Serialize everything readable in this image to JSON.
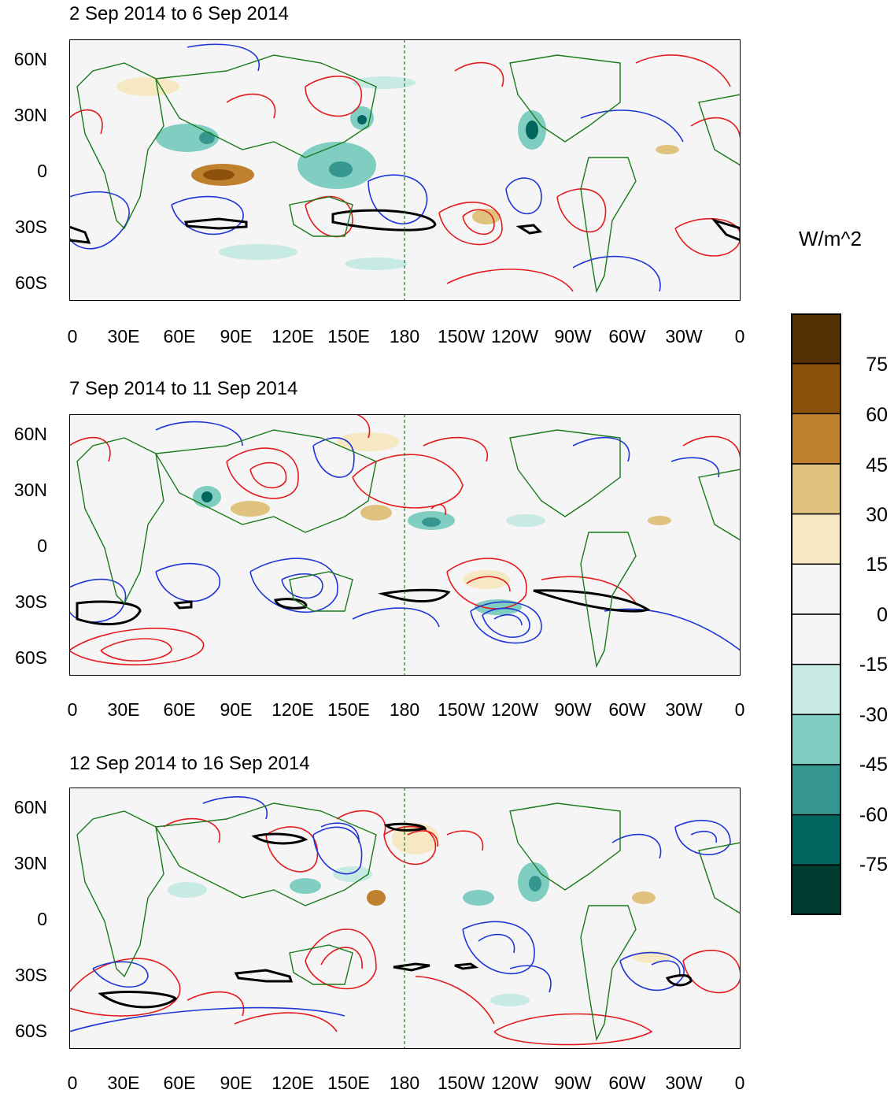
{
  "figure": {
    "units": "W/m^2",
    "lat_labels": [
      "60N",
      "30N",
      "0",
      "30S",
      "60S"
    ],
    "lon_labels": [
      "0",
      "30E",
      "60E",
      "90E",
      "120E",
      "150E",
      "180",
      "150W",
      "120W",
      "90W",
      "60W",
      "30W",
      "0"
    ],
    "panels": [
      {
        "title": "2 Sep 2014 to 6 Sep 2014"
      },
      {
        "title": "7 Sep 2014 to 11 Sep 2014"
      },
      {
        "title": "12 Sep 2014 to 16 Sep 2014"
      }
    ]
  },
  "colorbar": {
    "labels": [
      "75",
      "60",
      "45",
      "30",
      "15",
      "0",
      "-15",
      "-30",
      "-45",
      "-60",
      "-75"
    ],
    "colors": [
      "#543005",
      "#8c510a",
      "#bf812d",
      "#dfc27d",
      "#f6e8c3",
      "#f5f5f5",
      "#f5f5f5",
      "#c7eae5",
      "#80cdc1",
      "#35978f",
      "#01665e",
      "#003c30"
    ]
  },
  "colors": {
    "positive_contour": "#e31a1c",
    "negative_contour": "#1f35d6",
    "significance_contour": "#000000",
    "coastline": "#1a7a1a"
  }
}
